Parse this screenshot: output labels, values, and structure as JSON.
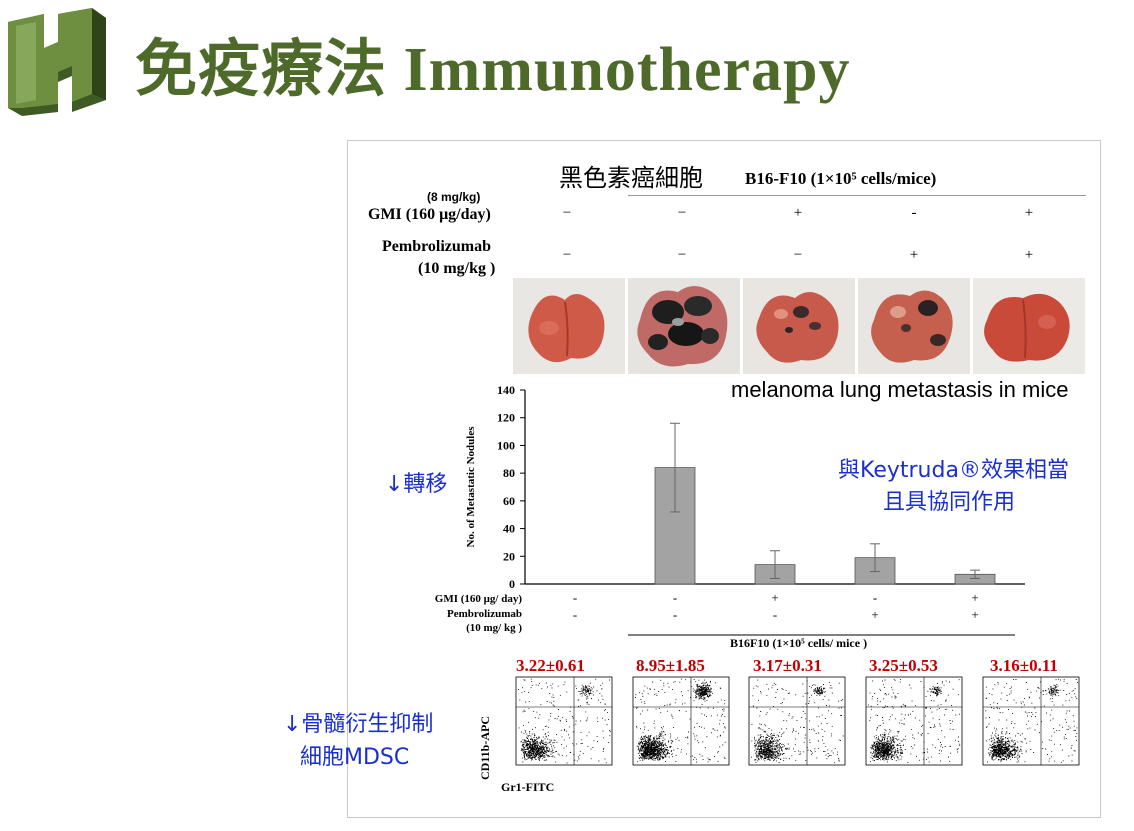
{
  "slide": {
    "title": "免疫療法 Immunotherapy",
    "colors": {
      "title": "#4d6a2a",
      "annotation": "#1a2fd0",
      "mdsc_values": "#c00000",
      "bar": "#a3a3a3"
    }
  },
  "top_table": {
    "cell_label_zh": "黑色素癌細胞",
    "model_label": "B16-F10 (1×10⁵ cells/mice)",
    "dose_note": "(8 mg/kg)",
    "gmi_label": "GMI (160 μg/day)",
    "gmi_signs": [
      "−",
      "−",
      "+",
      "-",
      "+"
    ],
    "pembro_label": "Pembrolizumab",
    "pembro_dose": "(10 mg/kg )",
    "pembro_signs": [
      "−",
      "−",
      "−",
      "+",
      "+"
    ]
  },
  "lung_caption": "melanoma lung metastasis in mice",
  "annotations": {
    "metastasis": "↓轉移",
    "efficacy_line1": "與Keytruda®效果相當",
    "efficacy_line2": "且具協同作用",
    "mdsc_line1": "↓骨髓衍生抑制",
    "mdsc_line2": "細胞MDSC"
  },
  "chart_data": {
    "type": "bar",
    "ylabel": "No. of Metastatic Nodules",
    "ylim": [
      0,
      140
    ],
    "yticks": [
      "0",
      "20",
      "40",
      "60",
      "80",
      "100",
      "120",
      "140"
    ],
    "values": [
      0,
      84,
      14,
      19,
      7
    ],
    "errors": [
      0,
      32,
      10,
      10,
      3
    ],
    "gmi_label": "GMI (160 μg/ day)",
    "gmi_signs": [
      "-",
      "-",
      "+",
      "-",
      "+"
    ],
    "pembro_label": "Pembrolizumab",
    "pembro_dose": "(10 mg/ kg )",
    "pembro_signs": [
      "-",
      "-",
      "-",
      "+",
      "+"
    ],
    "group_label": "B16F10 (1×10⁵ cells/ mice )"
  },
  "flow": {
    "values": [
      "3.22±0.61",
      "8.95±1.85",
      "3.17±0.31",
      "3.25±0.53",
      "3.16±0.11"
    ],
    "ylabel": "CD11b-APC",
    "xlabel": "Gr1-FITC",
    "density": [
      0.7,
      1.0,
      0.65,
      0.75,
      0.7
    ]
  }
}
